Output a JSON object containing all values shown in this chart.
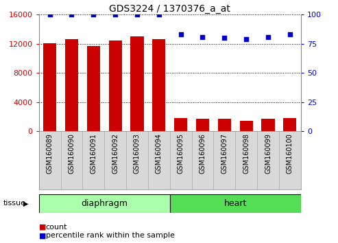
{
  "title": "GDS3224 / 1370376_a_at",
  "samples": [
    "GSM160089",
    "GSM160090",
    "GSM160091",
    "GSM160092",
    "GSM160093",
    "GSM160094",
    "GSM160095",
    "GSM160096",
    "GSM160097",
    "GSM160098",
    "GSM160099",
    "GSM160100"
  ],
  "counts": [
    12100,
    12600,
    11700,
    12400,
    13000,
    12600,
    1800,
    1750,
    1750,
    1400,
    1700,
    1800
  ],
  "percentiles": [
    100,
    100,
    100,
    100,
    100,
    100,
    83,
    81,
    80,
    79,
    81,
    83
  ],
  "bar_color": "#cc0000",
  "dot_color": "#0000cc",
  "ylim_left": [
    0,
    16000
  ],
  "ylim_right": [
    0,
    100
  ],
  "yticks_left": [
    0,
    4000,
    8000,
    12000,
    16000
  ],
  "yticks_right": [
    0,
    25,
    50,
    75,
    100
  ],
  "groups": [
    {
      "label": "diaphragm",
      "start": 0,
      "end": 5,
      "color": "#aaffaa"
    },
    {
      "label": "heart",
      "start": 6,
      "end": 11,
      "color": "#55dd55"
    }
  ],
  "legend_count_color": "#cc0000",
  "legend_dot_color": "#0000cc",
  "tissue_label": "tissue",
  "background_color": "#ffffff",
  "tick_label_color_left": "#cc0000",
  "tick_label_color_right": "#0000cc",
  "xlabel_bg": "#d8d8d8"
}
